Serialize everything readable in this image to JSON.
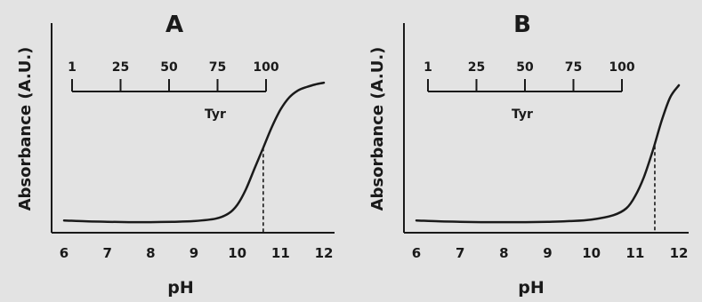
{
  "chart_data": [
    {
      "type": "line",
      "panel_label": "A",
      "title": "A",
      "xlabel": "pH",
      "ylabel": "Absorbance (A.U.)",
      "xlim": [
        5.8,
        12.2
      ],
      "ylim": [
        0,
        1
      ],
      "x_ticks": [
        6,
        7,
        8,
        9,
        10,
        11,
        12
      ],
      "x_tick_labels": [
        "6",
        "7",
        "8",
        "9",
        "10",
        "11",
        "12"
      ],
      "grid": false,
      "series": [
        {
          "x": [
            6.0,
            6.5,
            7.0,
            7.5,
            8.0,
            8.5,
            9.0,
            9.5,
            9.8,
            10.0,
            10.2,
            10.4,
            10.6,
            10.8,
            11.0,
            11.2,
            11.4,
            11.6,
            11.8,
            12.0
          ],
          "y": [
            0.03,
            0.025,
            0.022,
            0.02,
            0.02,
            0.022,
            0.026,
            0.04,
            0.07,
            0.12,
            0.21,
            0.33,
            0.45,
            0.57,
            0.67,
            0.74,
            0.78,
            0.8,
            0.815,
            0.825
          ]
        }
      ],
      "annotations": [
        {
          "type": "vertical-dashed-line",
          "x": 10.6,
          "y_top": 0.45,
          "y_bottom": 0
        }
      ],
      "secondary_scale": {
        "label": "Tyr",
        "ticks": [
          1,
          25,
          50,
          75,
          100
        ],
        "tick_labels": [
          "1",
          "25",
          "50",
          "75",
          "100"
        ]
      }
    },
    {
      "type": "line",
      "panel_label": "B",
      "title": "B",
      "xlabel": "pH",
      "ylabel": "Absorbance (A.U.)",
      "xlim": [
        5.8,
        12.2
      ],
      "ylim": [
        0,
        1
      ],
      "x_ticks": [
        6,
        7,
        8,
        9,
        10,
        11,
        12
      ],
      "x_tick_labels": [
        "6",
        "7",
        "8",
        "9",
        "10",
        "11",
        "12"
      ],
      "grid": false,
      "series": [
        {
          "x": [
            6.0,
            6.5,
            7.0,
            7.5,
            8.0,
            8.5,
            9.0,
            9.5,
            10.0,
            10.5,
            10.8,
            11.0,
            11.2,
            11.4,
            11.6,
            11.8,
            12.0
          ],
          "y": [
            0.03,
            0.025,
            0.022,
            0.02,
            0.02,
            0.02,
            0.022,
            0.026,
            0.035,
            0.06,
            0.1,
            0.17,
            0.28,
            0.43,
            0.6,
            0.74,
            0.81
          ]
        }
      ],
      "annotations": [
        {
          "type": "vertical-dashed-line",
          "x": 11.45,
          "y_top": 0.46,
          "y_bottom": 0
        }
      ],
      "secondary_scale": {
        "label": "Tyr",
        "ticks": [
          1,
          25,
          50,
          75,
          100
        ],
        "tick_labels": [
          "1",
          "25",
          "50",
          "75",
          "100"
        ]
      }
    }
  ]
}
